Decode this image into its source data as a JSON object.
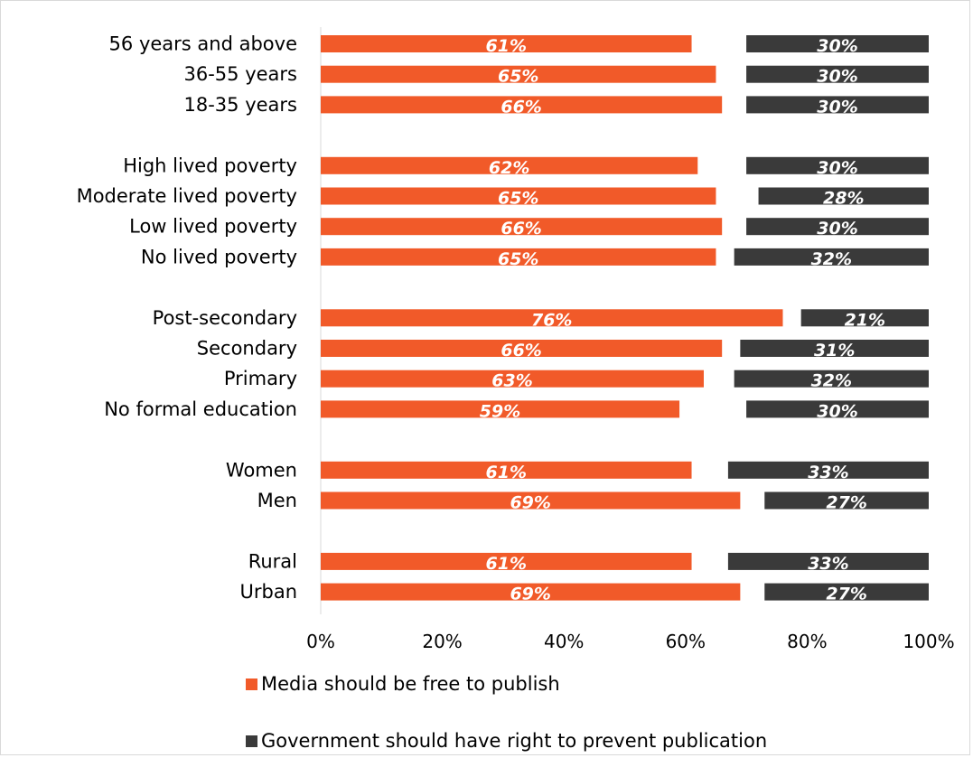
{
  "chart_data": {
    "type": "bar",
    "orientation": "horizontal",
    "stacked": true,
    "categories": [
      "56 years and above",
      "36-55 years",
      "18-35 years",
      "High lived poverty",
      "Moderate lived poverty",
      "Low lived poverty",
      "No lived poverty",
      "Post-secondary",
      "Secondary",
      "Primary",
      "No formal education",
      "Women",
      "Men",
      "Rural",
      "Urban"
    ],
    "groups": [
      {
        "categories": [
          "56 years and above",
          "36-55 years",
          "18-35 years"
        ]
      },
      {
        "categories": [
          "High lived poverty",
          "Moderate lived poverty",
          "Low lived poverty",
          "No lived poverty"
        ]
      },
      {
        "categories": [
          "Post-secondary",
          "Secondary",
          "Primary",
          "No formal education"
        ]
      },
      {
        "categories": [
          "Women",
          "Men"
        ]
      },
      {
        "categories": [
          "Rural",
          "Urban"
        ]
      }
    ],
    "series": [
      {
        "name": "Media should be free to publish",
        "color": "#f15a29",
        "values": [
          61,
          65,
          66,
          62,
          65,
          66,
          65,
          76,
          66,
          63,
          59,
          61,
          69,
          61,
          69
        ],
        "labels": [
          "61%",
          "65%",
          "66%",
          "62%",
          "65%",
          "66%",
          "65%",
          "76%",
          "66%",
          "63%",
          "59%",
          "61%",
          "69%",
          "61%",
          "69%"
        ]
      },
      {
        "name": "Government should have right to prevent publication",
        "color": "#3a3a3a",
        "values": [
          30,
          30,
          30,
          30,
          28,
          30,
          32,
          21,
          31,
          32,
          30,
          33,
          27,
          33,
          27
        ],
        "labels": [
          "30%",
          "30%",
          "30%",
          "30%",
          "28%",
          "30%",
          "32%",
          "21%",
          "31%",
          "32%",
          "30%",
          "33%",
          "27%",
          "33%",
          "27%"
        ]
      }
    ],
    "xlim": [
      0,
      100
    ],
    "x_ticks": [
      "0%",
      "20%",
      "40%",
      "60%",
      "80%",
      "100%"
    ],
    "xlabel": "",
    "ylabel": "",
    "title": "",
    "grid": false,
    "legend_position": "bottom"
  }
}
